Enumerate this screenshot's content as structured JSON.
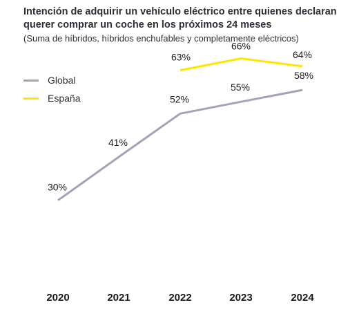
{
  "header": {
    "title": "Intención de adquirir un vehículo eléctrico entre quienes declaran querer comprar un coche en los próximos 24 meses",
    "subtitle": "(Suma de híbridos, híbridos enchufables y completamente eléctricos)"
  },
  "chart_data": {
    "type": "line",
    "title": "Intención de adquirir un vehículo eléctrico entre quienes declaran querer comprar un coche en los próximos 24 meses",
    "subtitle": "(Suma de híbridos, híbridos enchufables y completamente eléctricos)",
    "categories": [
      "2020",
      "2021",
      "2022",
      "2023",
      "2024"
    ],
    "legend_position": "top-left",
    "grid": false,
    "series": [
      {
        "name": "Global",
        "color": "#a4a3b5",
        "values": [
          30,
          41,
          52,
          55,
          58
        ],
        "labels": [
          "30%",
          "41%",
          "52%",
          "55%",
          "58%"
        ]
      },
      {
        "name": "España",
        "color": "#ffe600",
        "values": [
          null,
          null,
          63,
          66,
          64
        ],
        "labels": [
          null,
          null,
          "63%",
          "66%",
          "64%"
        ]
      }
    ]
  }
}
